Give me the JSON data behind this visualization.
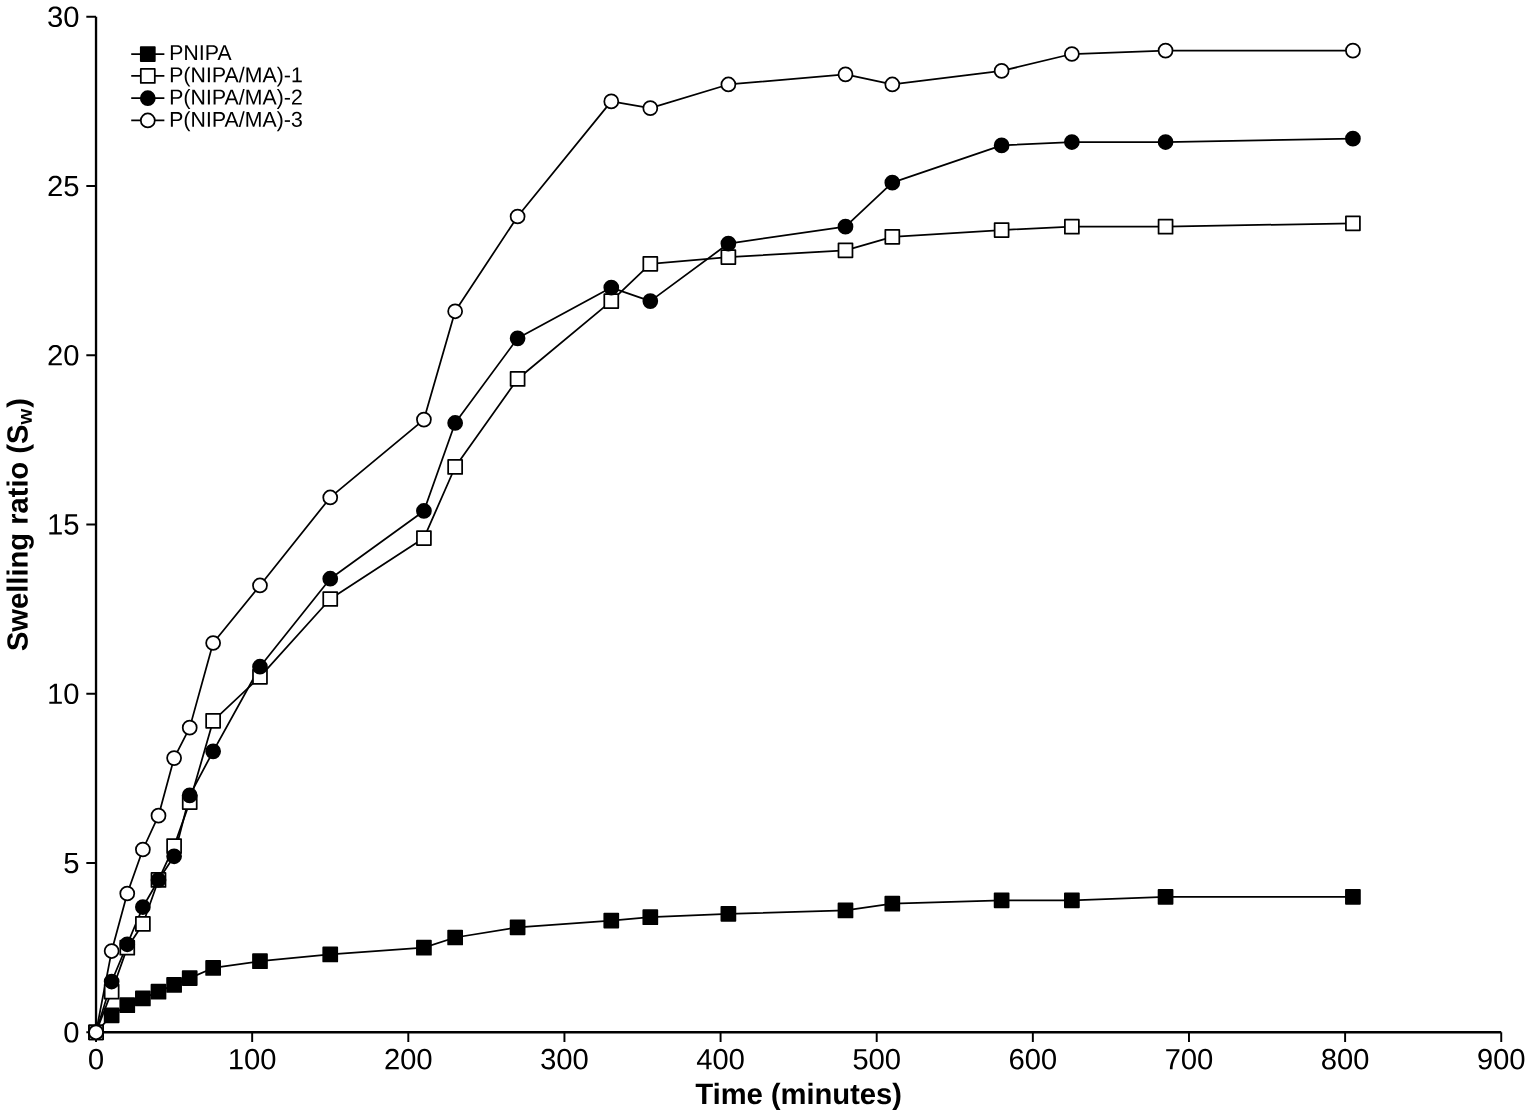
{
  "chart_data": {
    "type": "line",
    "xlabel": "Time (minutes)",
    "ylabel": "Swelling ratio (S$_{w}$)",
    "x": [
      0,
      10,
      20,
      30,
      40,
      50,
      60,
      75,
      105,
      150,
      210,
      230,
      270,
      330,
      355,
      405,
      480,
      510,
      580,
      625,
      685,
      805
    ],
    "series": [
      {
        "name": "PNIPA",
        "color": "#000000",
        "marker": "square*",
        "values": [
          0,
          0.5,
          0.8,
          1.0,
          1.2,
          1.4,
          1.6,
          1.9,
          2.1,
          2.3,
          2.5,
          2.8,
          3.1,
          3.3,
          3.4,
          3.5,
          3.6,
          3.8,
          3.9,
          3.9,
          4.0,
          4.0
        ]
      },
      {
        "name": "P(NIPA/MA)-1",
        "color": "#000000",
        "marker": "square",
        "values": [
          0,
          1.2,
          2.5,
          3.2,
          4.5,
          5.5,
          6.8,
          9.2,
          10.5,
          12.8,
          14.6,
          16.7,
          19.3,
          21.6,
          22.7,
          22.9,
          23.1,
          23.5,
          23.7,
          23.8,
          23.8,
          23.9
        ]
      },
      {
        "name": "P(NIPA/MA)-2",
        "color": "#000000",
        "marker": "circle*",
        "values": [
          0,
          1.5,
          2.6,
          3.7,
          4.5,
          5.2,
          7.0,
          8.3,
          10.8,
          13.4,
          15.4,
          18.0,
          20.5,
          22.0,
          21.6,
          23.3,
          23.8,
          25.1,
          26.2,
          26.3,
          26.3,
          26.4
        ]
      },
      {
        "name": "P(NIPA/MA)-3",
        "color": "#000000",
        "marker": "circle",
        "values": [
          0,
          2.4,
          4.1,
          5.4,
          6.4,
          8.1,
          9.0,
          11.5,
          13.2,
          15.8,
          18.1,
          21.3,
          24.1,
          27.5,
          27.3,
          28.0,
          28.3,
          28.0,
          28.4,
          28.9,
          29.0,
          29.0
        ]
      }
    ],
    "xlim": [
      0,
      900
    ],
    "ylim": [
      0,
      30
    ],
    "xticks": [
      0,
      100,
      200,
      300,
      400,
      500,
      600,
      700,
      800,
      900
    ],
    "yticks": [
      0,
      5,
      10,
      15,
      20,
      25,
      30
    ],
    "grid": false,
    "legend": "top left",
    "line_style": "solid"
  }
}
